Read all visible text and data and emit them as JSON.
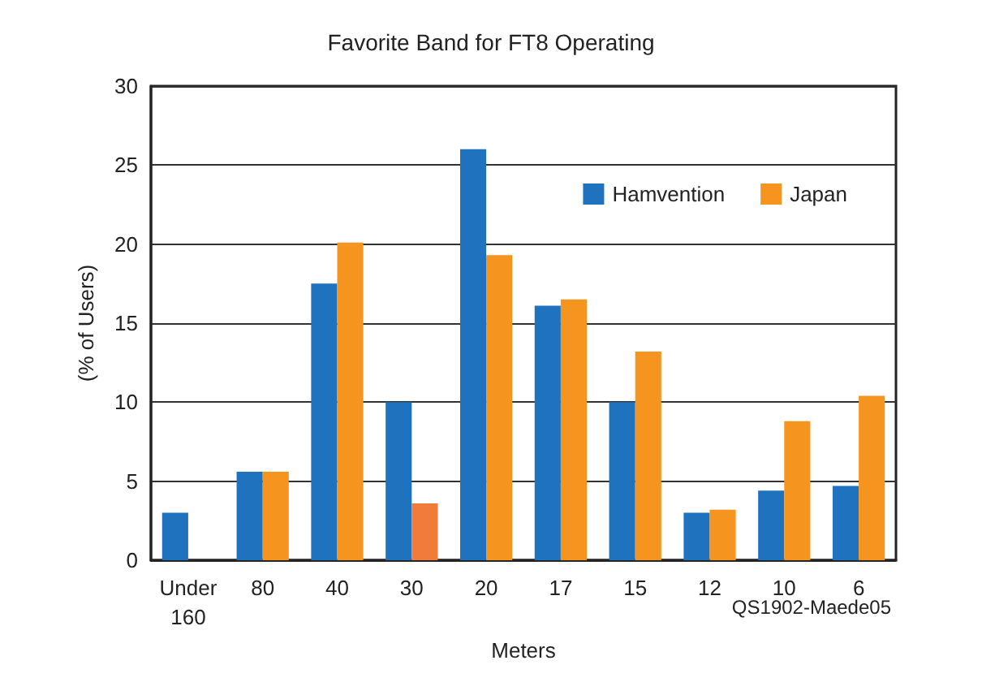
{
  "chart_data": {
    "type": "bar",
    "title": "Favorite Band for FT8 Operating",
    "xlabel": "Meters",
    "ylabel": "(% of Users)",
    "categories": [
      "Under\n160",
      "80",
      "40",
      "30",
      "20",
      "17",
      "15",
      "12",
      "10",
      "6"
    ],
    "series": [
      {
        "name": "Hamvention",
        "color": "#1f72be",
        "values": [
          3.0,
          5.6,
          17.5,
          10,
          26,
          16.1,
          10,
          3.0,
          4.4,
          4.7
        ]
      },
      {
        "name": "Japan",
        "color": "#f5941e",
        "colors": [
          null,
          null,
          null,
          "#f07b3a",
          null,
          null,
          null,
          null,
          null,
          null
        ],
        "values": [
          null,
          5.6,
          20.1,
          3.6,
          19.3,
          16.5,
          13.2,
          3.2,
          8.8,
          10.4
        ]
      }
    ],
    "ylim": [
      0,
      30
    ],
    "yticks": [
      0,
      5,
      10,
      15,
      20,
      25,
      30
    ],
    "grid": "y",
    "legend": "top right",
    "annotations": [
      "QS1902-Maede05"
    ]
  }
}
